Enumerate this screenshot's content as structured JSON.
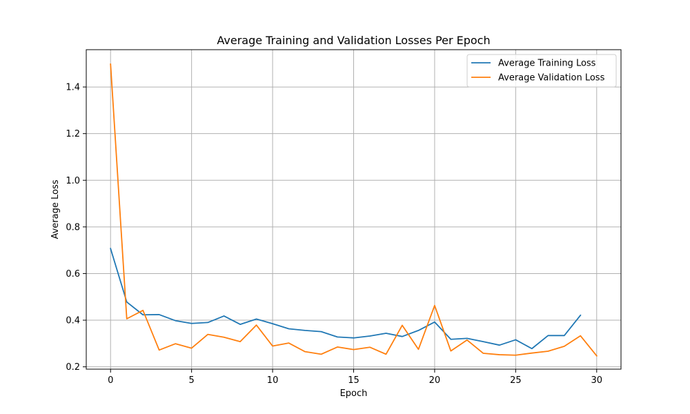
{
  "chart_data": {
    "type": "line",
    "title": "Average Training and Validation Losses Per Epoch",
    "xlabel": "Epoch",
    "ylabel": "Average Loss",
    "xlim": [
      -1.5,
      31.5
    ],
    "ylim": [
      0.19,
      1.56
    ],
    "xticks": [
      0,
      5,
      10,
      15,
      20,
      25,
      30
    ],
    "yticks": [
      0.2,
      0.4,
      0.6,
      0.8,
      1.0,
      1.2,
      1.4
    ],
    "xtick_labels": [
      "0",
      "5",
      "10",
      "15",
      "20",
      "25",
      "30"
    ],
    "ytick_labels": [
      "0.2",
      "0.4",
      "0.6",
      "0.8",
      "1.0",
      "1.2",
      "1.4"
    ],
    "grid": true,
    "legend_position": "top-right",
    "series": [
      {
        "name": "Average Training Loss",
        "color": "#1f77b4",
        "x": [
          0,
          1,
          2,
          3,
          4,
          5,
          6,
          7,
          8,
          9,
          10,
          11,
          12,
          13,
          14,
          15,
          16,
          17,
          18,
          19,
          20,
          21,
          22,
          23,
          24,
          25,
          26,
          27,
          28,
          29
        ],
        "values": [
          0.707,
          0.478,
          0.423,
          0.424,
          0.398,
          0.386,
          0.39,
          0.418,
          0.382,
          0.405,
          0.385,
          0.363,
          0.356,
          0.351,
          0.328,
          0.324,
          0.332,
          0.344,
          0.33,
          0.356,
          0.392,
          0.318,
          0.322,
          0.308,
          0.293,
          0.316,
          0.278,
          0.334,
          0.334,
          0.421
        ]
      },
      {
        "name": "Average Validation Loss",
        "color": "#ff7f0e",
        "x": [
          0,
          1,
          2,
          3,
          4,
          5,
          6,
          7,
          8,
          9,
          10,
          11,
          12,
          13,
          14,
          15,
          16,
          17,
          18,
          19,
          20,
          21,
          22,
          23,
          24,
          25,
          26,
          27,
          28,
          29,
          30
        ],
        "values": [
          1.498,
          0.406,
          0.442,
          0.272,
          0.299,
          0.28,
          0.339,
          0.327,
          0.308,
          0.379,
          0.289,
          0.302,
          0.265,
          0.254,
          0.285,
          0.274,
          0.284,
          0.254,
          0.378,
          0.275,
          0.463,
          0.268,
          0.315,
          0.258,
          0.252,
          0.25,
          0.259,
          0.267,
          0.288,
          0.333,
          0.247
        ]
      }
    ]
  }
}
